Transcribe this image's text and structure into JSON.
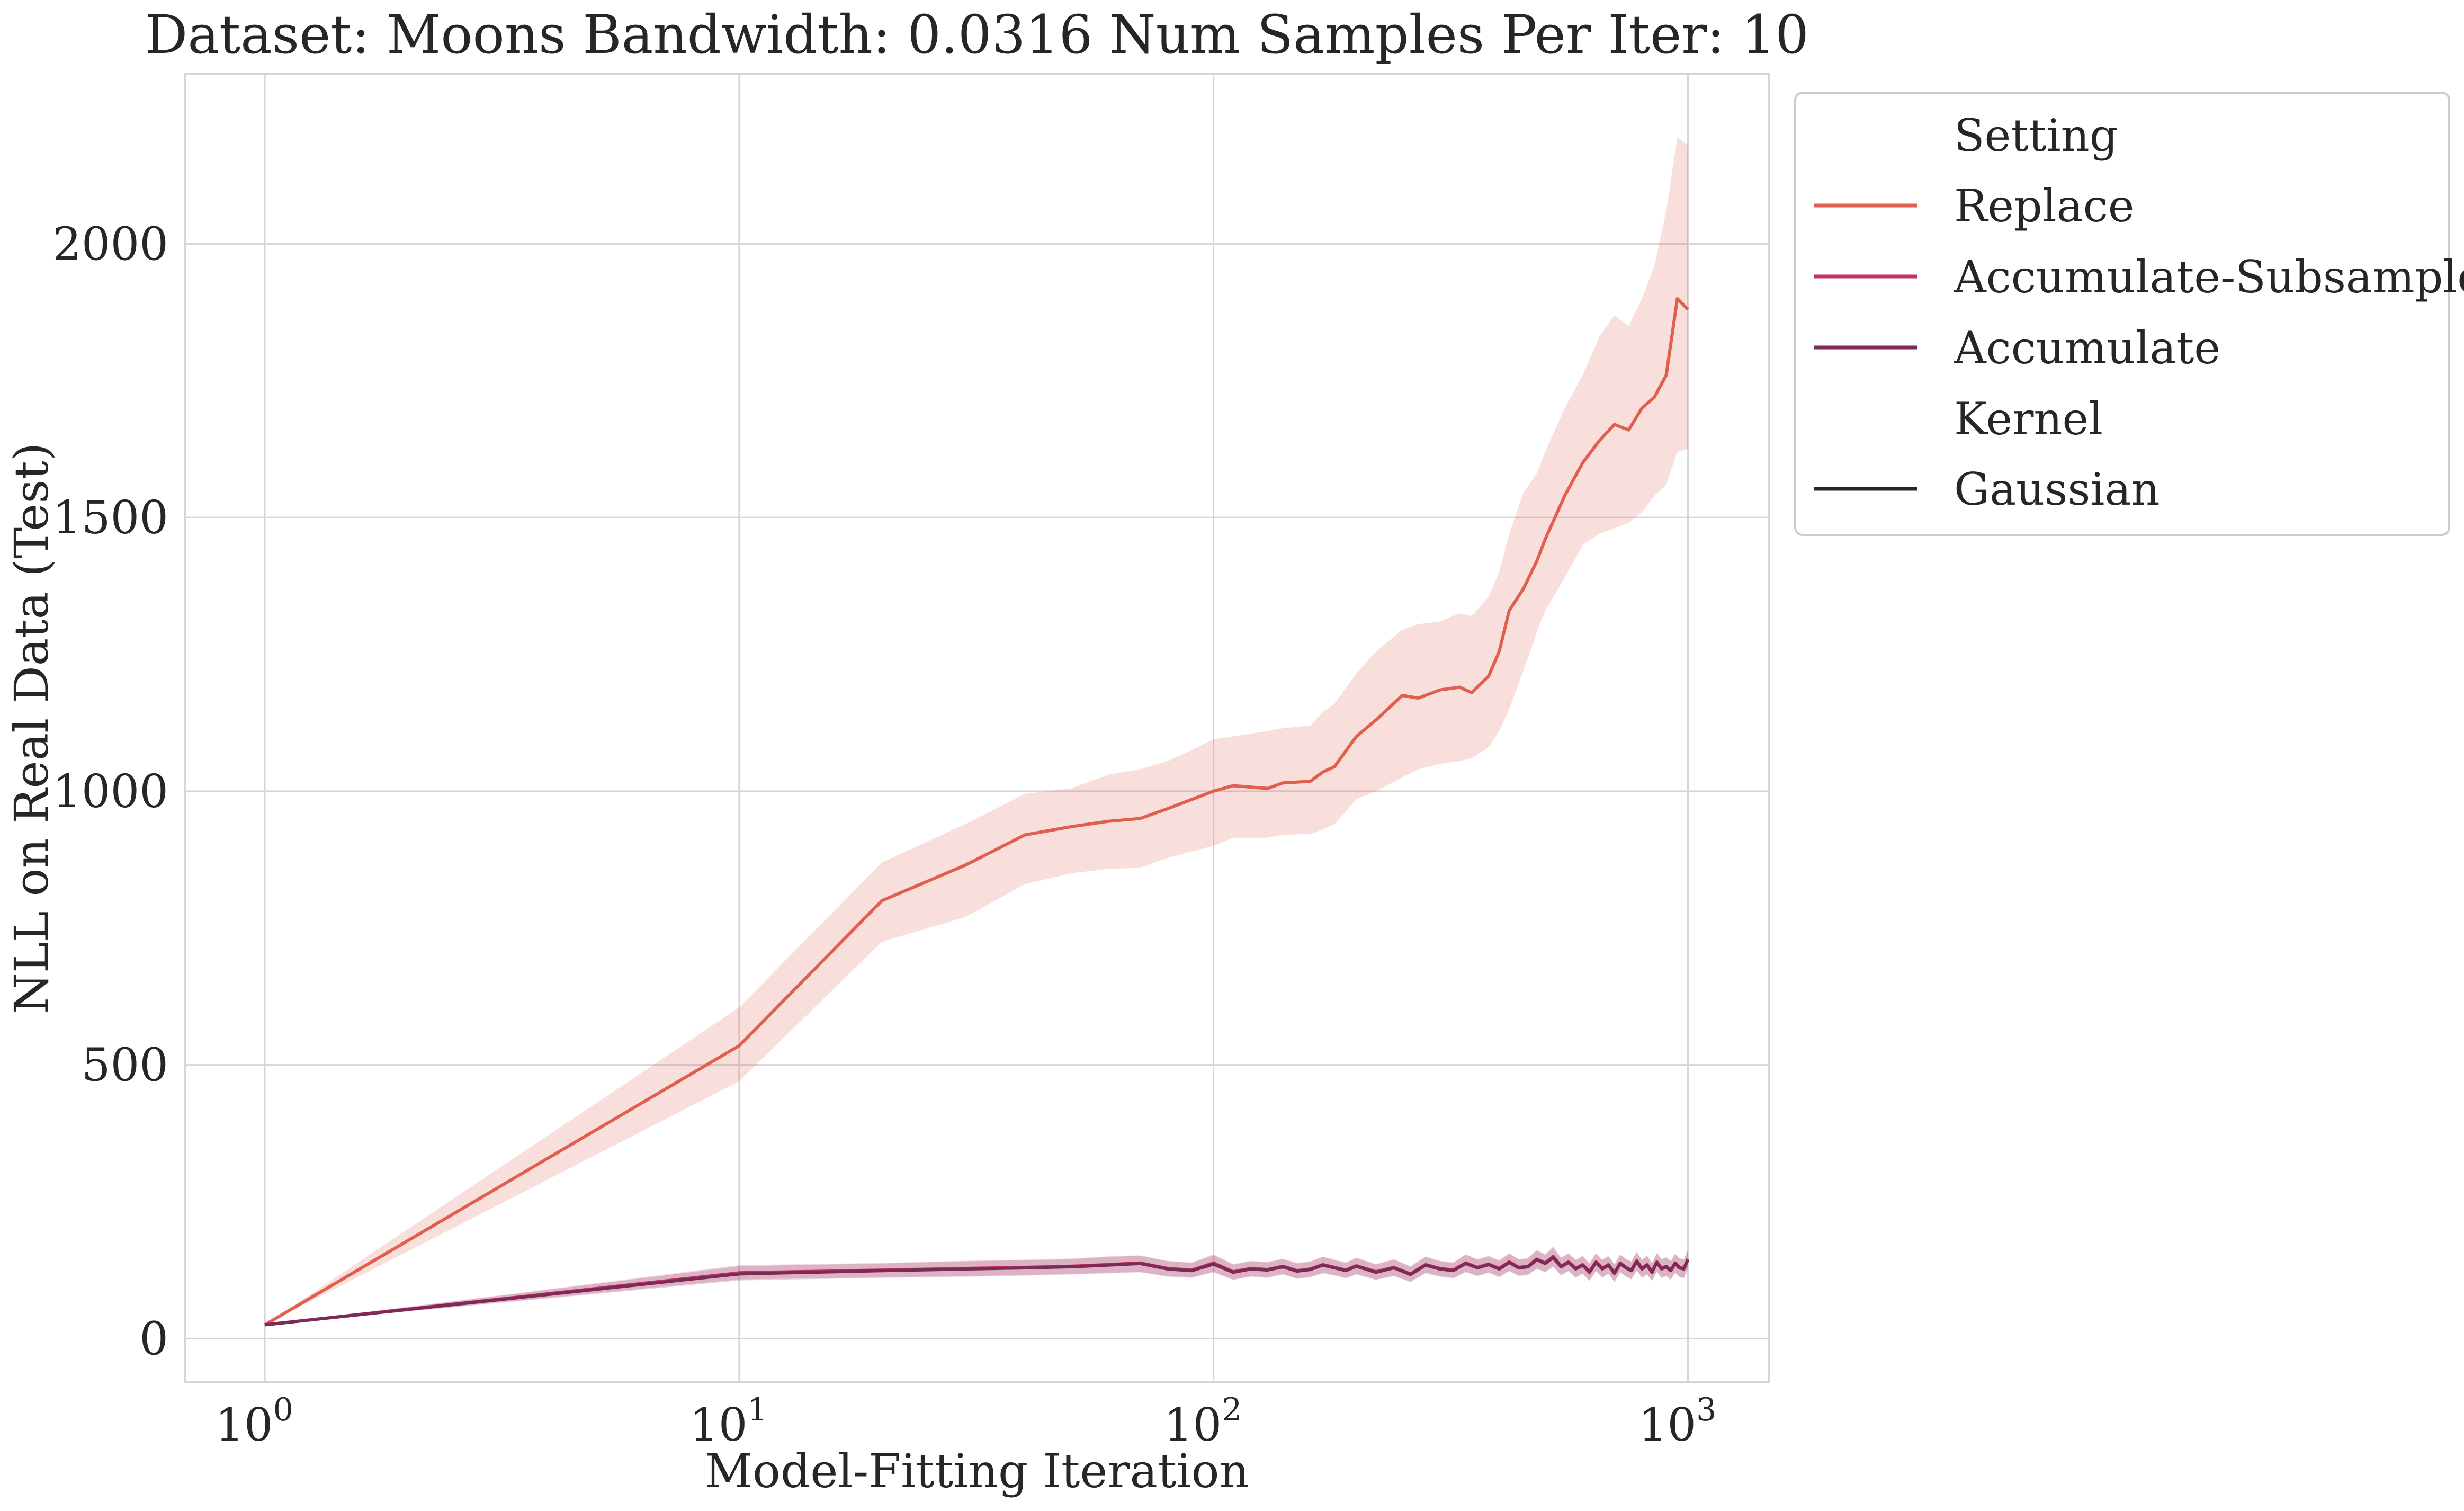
{
  "chart_data": {
    "type": "line",
    "title": "Dataset: Moons Bandwidth: 0.0316 Num Samples Per Iter: 10",
    "xlabel": "Model-Fitting Iteration",
    "ylabel": "NLL on Real Data (Test)",
    "x_scale": "log",
    "xlim": [
      0.68,
      1480
    ],
    "ylim": [
      -80,
      2310
    ],
    "grid": true,
    "x_ticks": [
      {
        "value": 1,
        "base": "10",
        "exp": "0"
      },
      {
        "value": 10,
        "base": "10",
        "exp": "1"
      },
      {
        "value": 100,
        "base": "10",
        "exp": "2"
      },
      {
        "value": 1000,
        "base": "10",
        "exp": "3"
      }
    ],
    "y_ticks": [
      0,
      500,
      1000,
      1500,
      2000
    ],
    "legend": {
      "position": "upper right, outside plot",
      "setting_title": "Setting",
      "kernel_title": "Kernel",
      "entries": [
        {
          "label": "Replace",
          "color": "#e05f4e"
        },
        {
          "label": "Accumulate-Subsample",
          "color": "#c6305e"
        },
        {
          "label": "Accumulate",
          "color": "#7d2a57"
        },
        {
          "label": "Gaussian",
          "color": "#262626"
        }
      ]
    },
    "series": [
      {
        "name": "Replace",
        "color": "#e05f4e",
        "x": [
          1,
          10,
          20,
          30,
          40,
          50,
          60,
          70,
          80,
          90,
          100,
          110,
          130,
          140,
          160,
          170,
          180,
          200,
          220,
          250,
          270,
          300,
          330,
          350,
          380,
          400,
          420,
          450,
          480,
          500,
          550,
          600,
          650,
          700,
          750,
          800,
          850,
          900,
          950,
          1000
        ],
        "y": [
          25,
          535,
          800,
          865,
          920,
          935,
          945,
          950,
          968,
          985,
          1000,
          1010,
          1005,
          1015,
          1018,
          1035,
          1045,
          1100,
          1130,
          1175,
          1170,
          1185,
          1190,
          1180,
          1210,
          1255,
          1330,
          1370,
          1420,
          1460,
          1540,
          1600,
          1640,
          1670,
          1660,
          1700,
          1720,
          1760,
          1900,
          1880
        ],
        "lower": [
          25,
          470,
          725,
          770,
          830,
          850,
          858,
          860,
          878,
          890,
          900,
          915,
          915,
          920,
          922,
          930,
          940,
          985,
          1000,
          1025,
          1040,
          1050,
          1055,
          1060,
          1080,
          1110,
          1150,
          1220,
          1290,
          1330,
          1390,
          1450,
          1470,
          1480,
          1490,
          1510,
          1540,
          1560,
          1620,
          1625
        ],
        "upper": [
          25,
          605,
          870,
          940,
          995,
          1005,
          1030,
          1040,
          1055,
          1075,
          1095,
          1100,
          1110,
          1115,
          1120,
          1145,
          1160,
          1215,
          1255,
          1295,
          1305,
          1310,
          1325,
          1320,
          1355,
          1400,
          1470,
          1545,
          1580,
          1620,
          1700,
          1760,
          1830,
          1870,
          1850,
          1900,
          1960,
          2060,
          2195,
          2180
        ]
      },
      {
        "name": "Accumulate-Subsample",
        "color": "#c6305e",
        "x": [
          1,
          10,
          20,
          30,
          40,
          50,
          60,
          70,
          80,
          90,
          100,
          110,
          120,
          130,
          140,
          150,
          160,
          170,
          180,
          190,
          200,
          220,
          240,
          260,
          280,
          300,
          320,
          340,
          360,
          380,
          400,
          420,
          440,
          460,
          480,
          500,
          520,
          540,
          560,
          580,
          600,
          620,
          640,
          660,
          680,
          700,
          720,
          740,
          760,
          780,
          800,
          820,
          840,
          860,
          880,
          900,
          920,
          940,
          960,
          980,
          1000
        ],
        "y": [
          25,
          120,
          125,
          128,
          130,
          132,
          135,
          138,
          128,
          125,
          138,
          122,
          128,
          126,
          132,
          124,
          127,
          135,
          130,
          125,
          133,
          122,
          130,
          118,
          135,
          128,
          125,
          138,
          130,
          136,
          128,
          140,
          130,
          132,
          145,
          138,
          150,
          132,
          140,
          128,
          135,
          122,
          140,
          128,
          135,
          120,
          138,
          130,
          125,
          142,
          128,
          135,
          122,
          140,
          128,
          132,
          125,
          138,
          130,
          128,
          145
        ],
        "lower": [
          25,
          108,
          112,
          114,
          116,
          118,
          120,
          122,
          114,
          112,
          122,
          108,
          114,
          112,
          118,
          110,
          113,
          120,
          116,
          111,
          118,
          108,
          115,
          104,
          120,
          114,
          111,
          122,
          115,
          121,
          113,
          124,
          115,
          117,
          128,
          122,
          132,
          116,
          124,
          112,
          119,
          106,
          124,
          112,
          119,
          104,
          122,
          114,
          109,
          125,
          112,
          118,
          106,
          123,
          111,
          115,
          108,
          121,
          113,
          111,
          128
        ],
        "upper": [
          25,
          134,
          138,
          142,
          144,
          146,
          150,
          152,
          142,
          139,
          154,
          136,
          142,
          140,
          146,
          138,
          141,
          150,
          144,
          139,
          148,
          136,
          145,
          132,
          150,
          142,
          139,
          154,
          145,
          151,
          143,
          156,
          145,
          147,
          162,
          154,
          168,
          148,
          156,
          144,
          151,
          138,
          156,
          144,
          151,
          136,
          154,
          146,
          141,
          159,
          144,
          152,
          138,
          157,
          145,
          149,
          142,
          155,
          147,
          145,
          162
        ]
      },
      {
        "name": "Accumulate",
        "color": "#7d2a57",
        "x": [
          1,
          10,
          20,
          30,
          40,
          50,
          60,
          70,
          80,
          90,
          100,
          110,
          120,
          130,
          140,
          150,
          160,
          170,
          180,
          190,
          200,
          220,
          240,
          260,
          280,
          300,
          320,
          340,
          360,
          380,
          400,
          420,
          440,
          460,
          480,
          500,
          520,
          540,
          560,
          580,
          600,
          620,
          640,
          660,
          680,
          700,
          720,
          740,
          760,
          780,
          800,
          820,
          840,
          860,
          880,
          900,
          920,
          940,
          960,
          980,
          1000
        ],
        "y": [
          25,
          118,
          124,
          127,
          129,
          131,
          134,
          137,
          127,
          124,
          136,
          121,
          127,
          125,
          131,
          123,
          126,
          134,
          129,
          124,
          132,
          121,
          129,
          117,
          134,
          127,
          124,
          137,
          129,
          135,
          127,
          139,
          129,
          131,
          144,
          137,
          148,
          131,
          139,
          127,
          134,
          121,
          139,
          127,
          134,
          119,
          137,
          129,
          124,
          141,
          127,
          134,
          121,
          139,
          127,
          131,
          124,
          137,
          129,
          127,
          144
        ],
        "lower": [
          25,
          106,
          111,
          113,
          115,
          117,
          119,
          121,
          113,
          111,
          121,
          107,
          113,
          111,
          117,
          109,
          112,
          119,
          115,
          110,
          117,
          107,
          114,
          103,
          119,
          113,
          110,
          121,
          114,
          120,
          112,
          123,
          114,
          116,
          127,
          121,
          131,
          115,
          123,
          111,
          118,
          105,
          123,
          111,
          118,
          103,
          121,
          113,
          108,
          124,
          111,
          117,
          105,
          122,
          110,
          114,
          107,
          120,
          112,
          110,
          127
        ],
        "upper": [
          25,
          132,
          137,
          141,
          143,
          145,
          149,
          151,
          141,
          138,
          152,
          135,
          141,
          139,
          145,
          137,
          140,
          149,
          143,
          138,
          147,
          135,
          144,
          131,
          149,
          141,
          138,
          153,
          144,
          150,
          142,
          155,
          144,
          146,
          161,
          153,
          166,
          147,
          155,
          143,
          150,
          137,
          155,
          143,
          150,
          135,
          153,
          145,
          140,
          158,
          143,
          151,
          137,
          156,
          144,
          148,
          141,
          154,
          146,
          144,
          161
        ]
      }
    ]
  }
}
